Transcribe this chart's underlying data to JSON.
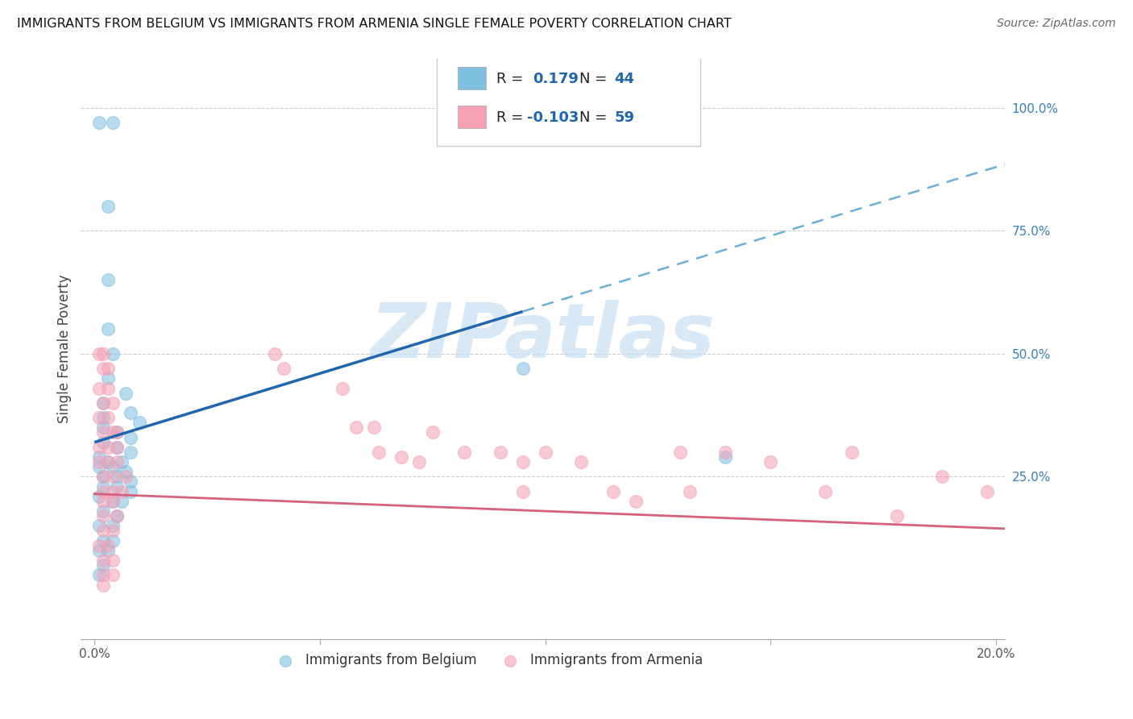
{
  "title": "IMMIGRANTS FROM BELGIUM VS IMMIGRANTS FROM ARMENIA SINGLE FEMALE POVERTY CORRELATION CHART",
  "source": "Source: ZipAtlas.com",
  "ylabel": "Single Female Poverty",
  "ylabel_right_ticks": [
    "100.0%",
    "75.0%",
    "50.0%",
    "25.0%"
  ],
  "ylabel_right_values": [
    1.0,
    0.75,
    0.5,
    0.25
  ],
  "xlim": [
    0.0,
    0.2
  ],
  "ylim": [
    -0.08,
    1.1
  ],
  "color_belgium": "#7fbfdf",
  "color_armenia": "#f4a0b5",
  "regression_belgium_slope": 2.8,
  "regression_belgium_intercept": 0.32,
  "regression_belgium_x_end_solid": 0.095,
  "regression_armenia_slope": -0.35,
  "regression_armenia_intercept": 0.215,
  "watermark_text": "ZIPatlas",
  "watermark_color": "#c8dff0",
  "belgium_points": [
    [
      0.001,
      0.97
    ],
    [
      0.004,
      0.97
    ],
    [
      0.003,
      0.8
    ],
    [
      0.003,
      0.65
    ],
    [
      0.003,
      0.55
    ],
    [
      0.004,
      0.5
    ],
    [
      0.003,
      0.45
    ],
    [
      0.007,
      0.42
    ],
    [
      0.002,
      0.4
    ],
    [
      0.008,
      0.38
    ],
    [
      0.002,
      0.37
    ],
    [
      0.01,
      0.36
    ],
    [
      0.002,
      0.35
    ],
    [
      0.005,
      0.34
    ],
    [
      0.008,
      0.33
    ],
    [
      0.002,
      0.32
    ],
    [
      0.005,
      0.31
    ],
    [
      0.008,
      0.3
    ],
    [
      0.001,
      0.29
    ],
    [
      0.003,
      0.28
    ],
    [
      0.006,
      0.28
    ],
    [
      0.001,
      0.27
    ],
    [
      0.004,
      0.27
    ],
    [
      0.007,
      0.26
    ],
    [
      0.002,
      0.25
    ],
    [
      0.005,
      0.25
    ],
    [
      0.008,
      0.24
    ],
    [
      0.002,
      0.23
    ],
    [
      0.005,
      0.23
    ],
    [
      0.008,
      0.22
    ],
    [
      0.001,
      0.21
    ],
    [
      0.004,
      0.2
    ],
    [
      0.006,
      0.2
    ],
    [
      0.002,
      0.18
    ],
    [
      0.005,
      0.17
    ],
    [
      0.001,
      0.15
    ],
    [
      0.004,
      0.15
    ],
    [
      0.002,
      0.12
    ],
    [
      0.004,
      0.12
    ],
    [
      0.001,
      0.1
    ],
    [
      0.003,
      0.1
    ],
    [
      0.002,
      0.07
    ],
    [
      0.001,
      0.05
    ],
    [
      0.095,
      0.47
    ],
    [
      0.14,
      0.29
    ]
  ],
  "armenia_points": [
    [
      0.001,
      0.5
    ],
    [
      0.002,
      0.5
    ],
    [
      0.002,
      0.47
    ],
    [
      0.003,
      0.47
    ],
    [
      0.001,
      0.43
    ],
    [
      0.003,
      0.43
    ],
    [
      0.002,
      0.4
    ],
    [
      0.004,
      0.4
    ],
    [
      0.001,
      0.37
    ],
    [
      0.003,
      0.37
    ],
    [
      0.002,
      0.34
    ],
    [
      0.004,
      0.34
    ],
    [
      0.005,
      0.34
    ],
    [
      0.001,
      0.31
    ],
    [
      0.003,
      0.31
    ],
    [
      0.005,
      0.31
    ],
    [
      0.001,
      0.28
    ],
    [
      0.003,
      0.28
    ],
    [
      0.005,
      0.28
    ],
    [
      0.002,
      0.25
    ],
    [
      0.004,
      0.25
    ],
    [
      0.007,
      0.25
    ],
    [
      0.002,
      0.22
    ],
    [
      0.004,
      0.22
    ],
    [
      0.006,
      0.22
    ],
    [
      0.002,
      0.2
    ],
    [
      0.004,
      0.2
    ],
    [
      0.002,
      0.17
    ],
    [
      0.005,
      0.17
    ],
    [
      0.002,
      0.14
    ],
    [
      0.004,
      0.14
    ],
    [
      0.001,
      0.11
    ],
    [
      0.003,
      0.11
    ],
    [
      0.002,
      0.08
    ],
    [
      0.004,
      0.08
    ],
    [
      0.002,
      0.05
    ],
    [
      0.004,
      0.05
    ],
    [
      0.002,
      0.03
    ],
    [
      0.04,
      0.5
    ],
    [
      0.042,
      0.47
    ],
    [
      0.055,
      0.43
    ],
    [
      0.058,
      0.35
    ],
    [
      0.062,
      0.35
    ],
    [
      0.063,
      0.3
    ],
    [
      0.068,
      0.29
    ],
    [
      0.072,
      0.28
    ],
    [
      0.075,
      0.34
    ],
    [
      0.082,
      0.3
    ],
    [
      0.09,
      0.3
    ],
    [
      0.095,
      0.22
    ],
    [
      0.095,
      0.28
    ],
    [
      0.1,
      0.3
    ],
    [
      0.108,
      0.28
    ],
    [
      0.115,
      0.22
    ],
    [
      0.12,
      0.2
    ],
    [
      0.13,
      0.3
    ],
    [
      0.132,
      0.22
    ],
    [
      0.14,
      0.3
    ],
    [
      0.15,
      0.28
    ],
    [
      0.162,
      0.22
    ],
    [
      0.168,
      0.3
    ],
    [
      0.178,
      0.17
    ],
    [
      0.188,
      0.25
    ],
    [
      0.198,
      0.22
    ]
  ]
}
